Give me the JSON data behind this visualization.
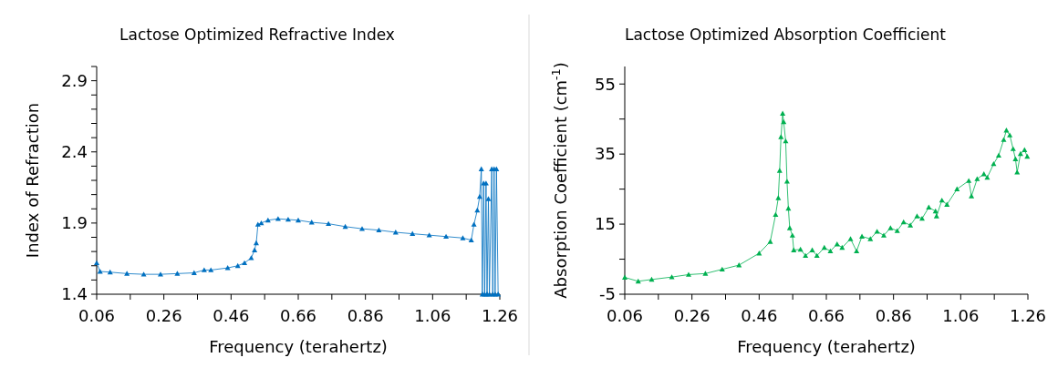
{
  "chart_data": [
    {
      "type": "line",
      "title": "Lactose Optimized Refractive Index",
      "xlabel": "Frequency (terahertz)",
      "ylabel": "Index of Refraction",
      "marker": "triangle",
      "line_style": "solid",
      "grid": false,
      "xlim": [
        0.06,
        1.26
      ],
      "ylim": [
        1.4,
        3.0
      ],
      "xticks": [
        0.06,
        {
          "value": 0.16,
          "label": null
        },
        0.26,
        {
          "value": 0.36,
          "label": null
        },
        0.46,
        {
          "value": 0.56,
          "label": null
        },
        0.66,
        {
          "value": 0.76,
          "label": null
        },
        0.86,
        {
          "value": 0.96,
          "label": null
        },
        1.06,
        {
          "value": 1.16,
          "label": null
        },
        1.26
      ],
      "yticks": [
        1.4,
        {
          "value": 1.5,
          "label": null
        },
        {
          "value": 1.6,
          "label": null
        },
        {
          "value": 1.7,
          "label": null
        },
        {
          "value": 1.8,
          "label": null
        },
        1.9,
        {
          "value": 2.0,
          "label": null
        },
        {
          "value": 2.1,
          "label": null
        },
        {
          "value": 2.2,
          "label": null
        },
        {
          "value": 2.3,
          "label": null
        },
        2.4,
        {
          "value": 2.5,
          "label": null
        },
        {
          "value": 2.6,
          "label": null
        },
        {
          "value": 2.7,
          "label": null
        },
        {
          "value": 2.8,
          "label": null
        },
        2.9,
        {
          "value": 3.0,
          "label": null
        }
      ],
      "series": [
        {
          "color": "#0070c0",
          "x": [
            0.06,
            0.07,
            0.1,
            0.15,
            0.2,
            0.25,
            0.3,
            0.35,
            0.38,
            0.4,
            0.45,
            0.48,
            0.5,
            0.52,
            0.53,
            0.535,
            0.54,
            0.55,
            0.57,
            0.6,
            0.63,
            0.66,
            0.7,
            0.75,
            0.8,
            0.85,
            0.9,
            0.95,
            1.0,
            1.05,
            1.1,
            1.15,
            1.175,
            1.183,
            1.193,
            1.2,
            1.205,
            1.208,
            1.212,
            1.215,
            1.219,
            1.222,
            1.226,
            1.229,
            1.236,
            1.239,
            1.243,
            1.246,
            1.25,
            1.255
          ],
          "values": [
            1.62,
            1.56,
            1.555,
            1.545,
            1.54,
            1.54,
            1.545,
            1.55,
            1.57,
            1.57,
            1.585,
            1.6,
            1.62,
            1.655,
            1.71,
            1.76,
            1.89,
            1.9,
            1.92,
            1.93,
            1.925,
            1.92,
            1.905,
            1.895,
            1.875,
            1.86,
            1.85,
            1.835,
            1.825,
            1.815,
            1.805,
            1.795,
            1.78,
            1.89,
            1.99,
            2.085,
            2.28,
            1.4,
            2.18,
            1.4,
            2.18,
            1.4,
            2.07,
            1.4,
            2.28,
            1.4,
            2.28,
            1.4,
            2.28,
            1.4
          ]
        }
      ]
    },
    {
      "type": "line",
      "title": "Lactose Optimized Absorption Coefficient",
      "xlabel": "Frequency (terahertz)",
      "ylabel": "Absorption Coefficient (cm$^{-1}$)",
      "marker": "triangle",
      "line_style": "solid",
      "grid": false,
      "xlim": [
        0.06,
        1.26
      ],
      "ylim": [
        -5,
        60
      ],
      "xticks": [
        0.06,
        {
          "value": 0.16,
          "label": null
        },
        0.26,
        {
          "value": 0.36,
          "label": null
        },
        0.46,
        {
          "value": 0.56,
          "label": null
        },
        0.66,
        {
          "value": 0.76,
          "label": null
        },
        0.86,
        {
          "value": 0.96,
          "label": null
        },
        1.06,
        {
          "value": 1.16,
          "label": null
        },
        1.26
      ],
      "yticks": [
        -5,
        {
          "value": 5,
          "label": null
        },
        15,
        {
          "value": 25,
          "label": null
        },
        35,
        {
          "value": 45,
          "label": null
        },
        55
      ],
      "series": [
        {
          "color": "#00b050",
          "x": [
            0.06,
            0.1,
            0.14,
            0.2,
            0.25,
            0.3,
            0.35,
            0.4,
            0.46,
            0.493,
            0.509,
            0.517,
            0.521,
            0.525,
            0.53,
            0.533,
            0.539,
            0.543,
            0.547,
            0.551,
            0.559,
            0.563,
            0.583,
            0.598,
            0.618,
            0.632,
            0.654,
            0.672,
            0.692,
            0.707,
            0.732,
            0.75,
            0.766,
            0.791,
            0.811,
            0.831,
            0.851,
            0.871,
            0.89,
            0.91,
            0.93,
            0.945,
            0.965,
            0.985,
            0.988,
            1.004,
            1.019,
            1.049,
            1.084,
            1.092,
            1.109,
            1.129,
            1.139,
            1.158,
            1.173,
            1.188,
            1.196,
            1.206,
            1.216,
            1.223,
            1.228,
            1.238,
            1.25,
            1.258
          ],
          "values": [
            -0.2,
            -1.3,
            -0.8,
            -0.1,
            0.6,
            0.9,
            2.1,
            3.3,
            6.7,
            10.0,
            17.7,
            22.5,
            30.3,
            39.9,
            46.6,
            44.2,
            38.7,
            27.2,
            19.5,
            13.9,
            11.8,
            7.6,
            7.8,
            6.0,
            7.6,
            6.0,
            8.3,
            7.3,
            9.3,
            8.3,
            10.8,
            7.3,
            11.5,
            10.8,
            12.9,
            11.8,
            13.9,
            13.1,
            15.6,
            14.7,
            17.3,
            16.6,
            19.8,
            18.7,
            17.3,
            21.8,
            20.6,
            25.0,
            27.4,
            23.0,
            27.9,
            29.3,
            28.3,
            32.2,
            34.6,
            39.1,
            41.8,
            40.4,
            36.5,
            33.6,
            29.8,
            35.1,
            36.2,
            34.3
          ]
        }
      ]
    }
  ]
}
